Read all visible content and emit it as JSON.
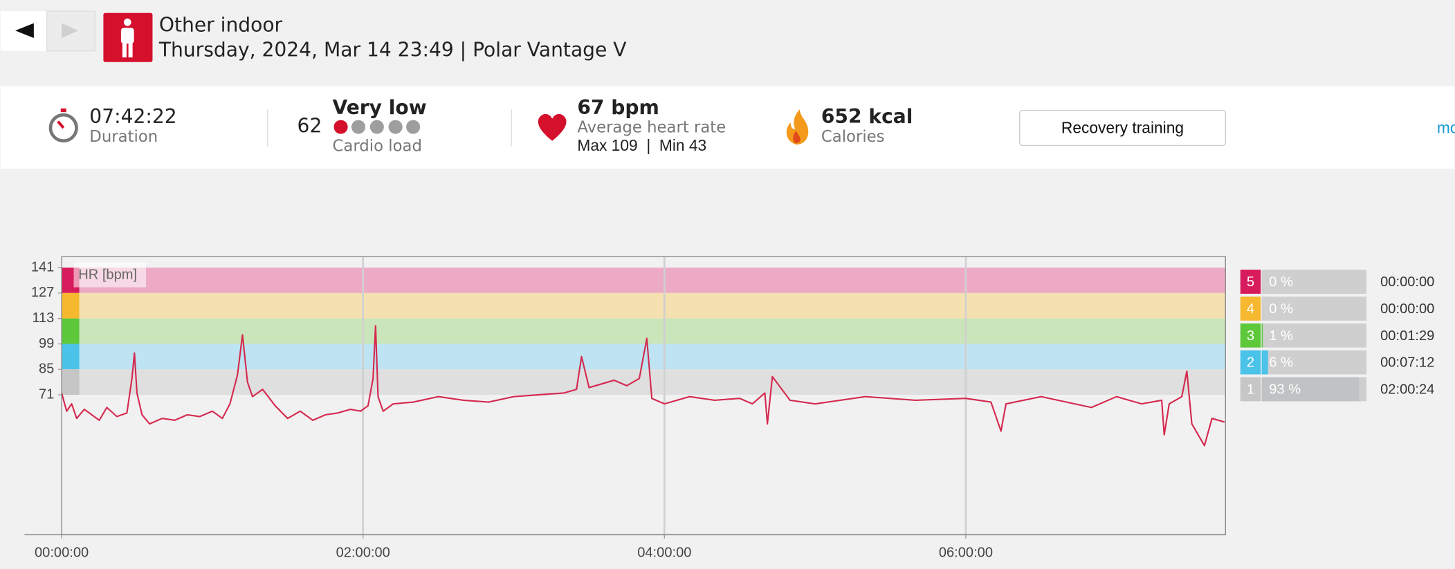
{
  "header": {
    "title": "Other indoor",
    "subtitle": "Thursday, 2024, Mar 14 23:49 | Polar Vantage V"
  },
  "summary": {
    "duration": "07:42:22",
    "duration_label": "Duration",
    "cardio_load_value": "62",
    "cardio_load_level": "Very low",
    "cardio_load_label": "Cardio load",
    "heart_rate": "67 bpm",
    "heart_rate_label": "Average heart rate",
    "heart_rate_range": "Max 109  |  Min 43",
    "calories": "652 kcal",
    "calories_label": "Calories",
    "button": "Recovery training",
    "more_link": "mo"
  },
  "chart_data": {
    "type": "line",
    "y_axis_label": "HR [bpm]",
    "color": "#d42a4f",
    "x": [
      0,
      2,
      4,
      6,
      9,
      12,
      15,
      18,
      22,
      26,
      28,
      29,
      30,
      32,
      35,
      40,
      45,
      50,
      55,
      60,
      64,
      67,
      70,
      72,
      74,
      76,
      80,
      85,
      90,
      95,
      100,
      105,
      110,
      115,
      119,
      122,
      124,
      125,
      126,
      128,
      132,
      140,
      150,
      160,
      170,
      180,
      190,
      200,
      205,
      207,
      210,
      215,
      220,
      225,
      230,
      233,
      235,
      240,
      250,
      260,
      270,
      275,
      280,
      281,
      283,
      290,
      300,
      320,
      340,
      360,
      370,
      374,
      376,
      390,
      410,
      420,
      430,
      438,
      439,
      441,
      446,
      448,
      450,
      455,
      458,
      463
    ],
    "values": [
      72,
      62,
      66,
      58,
      63,
      60,
      57,
      64,
      59,
      61,
      80,
      94,
      72,
      60,
      55,
      58,
      57,
      60,
      59,
      62,
      58,
      66,
      82,
      104,
      78,
      70,
      74,
      65,
      58,
      62,
      57,
      60,
      61,
      63,
      62,
      65,
      80,
      109,
      70,
      62,
      66,
      67,
      70,
      68,
      67,
      70,
      71,
      72,
      74,
      92,
      75,
      77,
      79,
      76,
      80,
      102,
      69,
      66,
      70,
      68,
      69,
      66,
      72,
      55,
      81,
      68,
      66,
      70,
      68,
      69,
      67,
      51,
      66,
      70,
      64,
      70,
      66,
      68,
      49,
      66,
      70,
      84,
      55,
      43,
      58,
      56
    ],
    "xlim": [
      0,
      463.4
    ],
    "xticks": [
      {
        "value": 0,
        "label": "00:00:00"
      },
      {
        "value": 120,
        "label": "02:00:00"
      },
      {
        "value": 240,
        "label": "04:00:00"
      },
      {
        "value": 360,
        "label": "06:00:00"
      }
    ],
    "ylim": [
      -6,
      147
    ],
    "yticks": [
      71,
      85,
      99,
      113,
      127,
      141
    ],
    "zones": [
      {
        "number": 5,
        "lower": 127,
        "upper": 141,
        "band_color": "#ecaac4",
        "color": "#d81b5c",
        "percent": 0,
        "percent_label": "0 %",
        "time": "00:00:00"
      },
      {
        "number": 4,
        "lower": 113,
        "upper": 127,
        "band_color": "#f5e0b2",
        "color": "#f5b82e",
        "percent": 0,
        "percent_label": "0 %",
        "time": "00:00:00"
      },
      {
        "number": 3,
        "lower": 99,
        "upper": 113,
        "band_color": "#c9e5b9",
        "color": "#5cc83a",
        "percent": 1,
        "percent_label": "1 %",
        "time": "00:01:29"
      },
      {
        "number": 2,
        "lower": 85,
        "upper": 99,
        "band_color": "#bee3f2",
        "color": "#4bc3e8",
        "percent": 6,
        "percent_label": "6 %",
        "time": "00:07:12"
      },
      {
        "number": 1,
        "lower": 71,
        "upper": 85,
        "band_color": "#dfdfdf",
        "color": "#c6c6c6",
        "percent": 93,
        "percent_label": "93 %",
        "time": "02:00:24"
      }
    ]
  }
}
